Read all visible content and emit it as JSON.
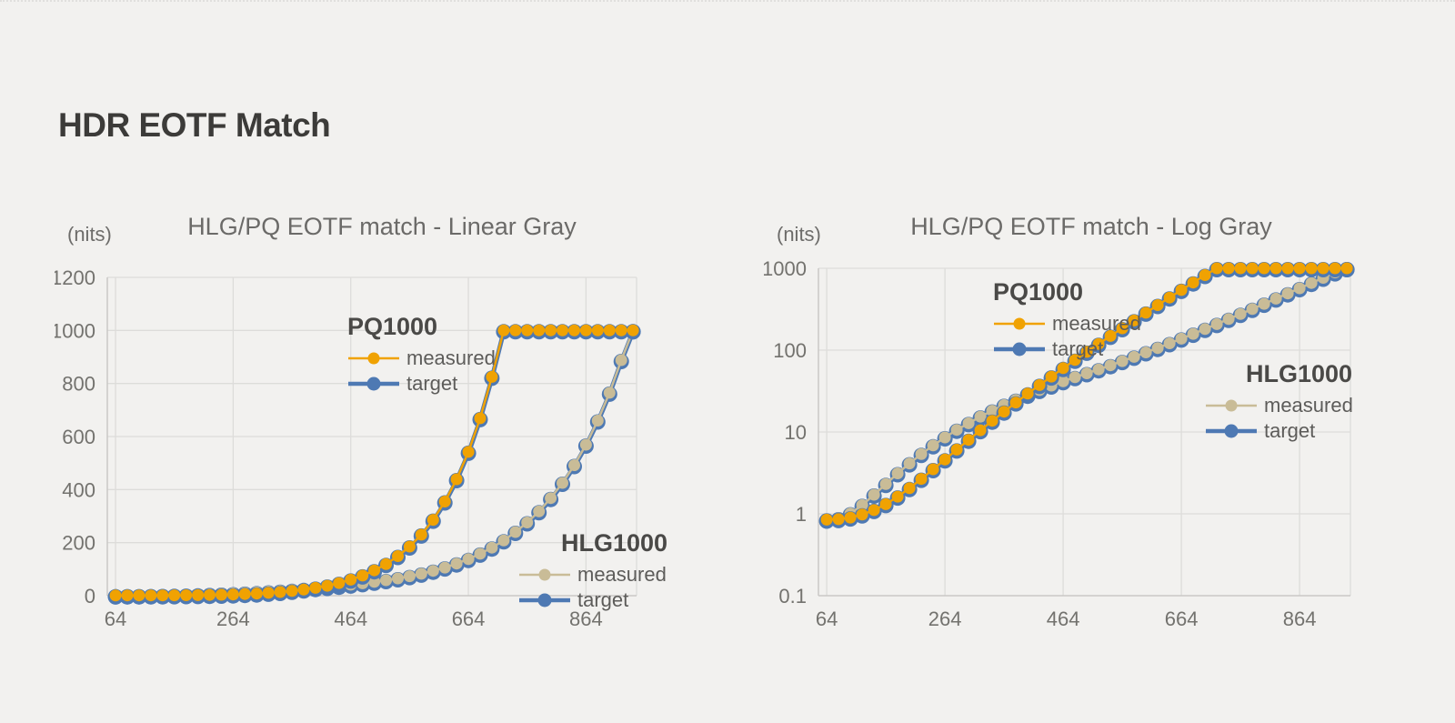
{
  "page": {
    "title": "HDR EOTF Match"
  },
  "colors": {
    "background": "#f2f1ef",
    "heading_text": "#3c3b39",
    "chart_text": "#6b6a68",
    "tick_text": "#73726e",
    "gridline": "#dddcda",
    "axis_line": "#c9c8c6",
    "pq_measured_orange": "#F0A202",
    "target_blue": "#4E79B3",
    "hlg_measured_tan": "#C9BC97"
  },
  "chart_data": [
    {
      "type": "line",
      "title": "HLG/PQ EOTF match - Linear Gray",
      "ylabel": "(nits)",
      "xlabel": "",
      "yscale": "linear",
      "ylim": [
        0,
        1200
      ],
      "yticks": [
        0,
        200,
        400,
        600,
        800,
        1000,
        1200
      ],
      "xlim": [
        50,
        950
      ],
      "xticks": [
        64,
        264,
        464,
        664,
        864
      ],
      "grid": true,
      "x": [
        64,
        84,
        104,
        124,
        144,
        164,
        184,
        204,
        224,
        244,
        264,
        284,
        304,
        324,
        344,
        364,
        384,
        404,
        424,
        444,
        464,
        484,
        504,
        524,
        544,
        564,
        584,
        604,
        624,
        644,
        664,
        684,
        704,
        724,
        744,
        764,
        784,
        804,
        824,
        844,
        864,
        884,
        904,
        924,
        944
      ],
      "series": [
        {
          "name": "HLG1000 target",
          "group": "HLG1000",
          "role": "target",
          "color": "#4E79B3",
          "values": [
            0.85,
            0.88,
            1.01,
            1.28,
            1.71,
            2.31,
            3.12,
            4.13,
            5.37,
            6.85,
            8.57,
            10.6,
            12.8,
            15.4,
            18.2,
            21.3,
            24.7,
            28.4,
            32.5,
            36.9,
            41.6,
            46.7,
            52.1,
            58.2,
            65.2,
            73.3,
            82.8,
            93.7,
            106,
            121,
            138,
            158,
            181,
            208,
            240,
            276,
            318,
            368,
            425,
            492,
            569,
            660,
            765,
            888,
            1000
          ]
        },
        {
          "name": "HLG1000 measured",
          "group": "HLG1000",
          "role": "measured",
          "color": "#C9BC97",
          "values": [
            0.85,
            0.88,
            1.01,
            1.28,
            1.71,
            2.31,
            3.12,
            4.13,
            5.37,
            6.85,
            8.57,
            10.6,
            12.8,
            15.4,
            18.2,
            21.3,
            24.7,
            28.4,
            32.5,
            36.9,
            41.6,
            46.7,
            52.1,
            58.2,
            65.2,
            73.3,
            82.8,
            93.7,
            106,
            121,
            138,
            158,
            181,
            208,
            240,
            276,
            318,
            368,
            425,
            492,
            569,
            660,
            765,
            888,
            1000
          ]
        },
        {
          "name": "PQ1000 target",
          "group": "PQ1000",
          "role": "target",
          "color": "#4E79B3",
          "values": [
            0.85,
            0.86,
            0.9,
            0.98,
            1.11,
            1.31,
            1.62,
            2.06,
            2.67,
            3.5,
            4.61,
            6.08,
            8.0,
            10.5,
            13.7,
            17.7,
            22.9,
            29.4,
            37.4,
            47.5,
            60.2,
            75.8,
            95.2,
            119,
            149,
            185,
            230,
            286,
            355,
            439,
            542,
            669,
            825,
            1000,
            1000,
            1000,
            1000,
            1000,
            1000,
            1000,
            1000,
            1000,
            1000,
            1000,
            1000
          ]
        },
        {
          "name": "PQ1000 measured",
          "group": "PQ1000",
          "role": "measured",
          "color": "#F0A202",
          "values": [
            0.85,
            0.86,
            0.9,
            0.98,
            1.11,
            1.31,
            1.62,
            2.06,
            2.67,
            3.5,
            4.61,
            6.08,
            8.0,
            10.5,
            13.7,
            17.7,
            22.9,
            29.4,
            37.4,
            47.5,
            60.2,
            75.8,
            95.2,
            119,
            149,
            185,
            230,
            286,
            355,
            439,
            542,
            669,
            825,
            1000,
            1000,
            1000,
            1000,
            1000,
            1000,
            1000,
            1000,
            1000,
            1000,
            1000,
            1000
          ]
        }
      ],
      "legends": [
        {
          "group": "PQ1000",
          "items": [
            {
              "label": "measured",
              "color": "#F0A202",
              "role": "measured"
            },
            {
              "label": "target",
              "color": "#4E79B3",
              "role": "target"
            }
          ]
        },
        {
          "group": "HLG1000",
          "items": [
            {
              "label": "measured",
              "color": "#C9BC97",
              "role": "measured"
            },
            {
              "label": "target",
              "color": "#4E79B3",
              "role": "target"
            }
          ]
        }
      ]
    },
    {
      "type": "line",
      "title": "HLG/PQ EOTF match - Log Gray",
      "ylabel": "(nits)",
      "xlabel": "",
      "yscale": "log",
      "ylim": [
        0.1,
        1000
      ],
      "yticks": [
        0.1,
        1,
        10,
        100,
        1000
      ],
      "xlim": [
        50,
        950
      ],
      "xticks": [
        64,
        264,
        464,
        664,
        864
      ],
      "grid": true,
      "x": [
        64,
        84,
        104,
        124,
        144,
        164,
        184,
        204,
        224,
        244,
        264,
        284,
        304,
        324,
        344,
        364,
        384,
        404,
        424,
        444,
        464,
        484,
        504,
        524,
        544,
        564,
        584,
        604,
        624,
        644,
        664,
        684,
        704,
        724,
        744,
        764,
        784,
        804,
        824,
        844,
        864,
        884,
        904,
        924,
        944
      ],
      "series": [
        {
          "name": "HLG1000 target",
          "group": "HLG1000",
          "role": "target",
          "color": "#4E79B3",
          "values": [
            0.85,
            0.88,
            1.01,
            1.28,
            1.71,
            2.31,
            3.12,
            4.13,
            5.37,
            6.85,
            8.57,
            10.6,
            12.8,
            15.4,
            18.2,
            21.3,
            24.7,
            28.4,
            32.5,
            36.9,
            41.6,
            46.7,
            52.1,
            58.2,
            65.2,
            73.3,
            82.8,
            93.7,
            106,
            121,
            138,
            158,
            181,
            208,
            240,
            276,
            318,
            368,
            425,
            492,
            569,
            660,
            765,
            888,
            1000
          ]
        },
        {
          "name": "HLG1000 measured",
          "group": "HLG1000",
          "role": "measured",
          "color": "#C9BC97",
          "values": [
            0.85,
            0.88,
            1.01,
            1.28,
            1.71,
            2.31,
            3.12,
            4.13,
            5.37,
            6.85,
            8.57,
            10.6,
            12.8,
            15.4,
            18.2,
            21.3,
            24.7,
            28.4,
            32.5,
            36.9,
            41.6,
            46.7,
            52.1,
            58.2,
            65.2,
            73.3,
            82.8,
            93.7,
            106,
            121,
            138,
            158,
            181,
            208,
            240,
            276,
            318,
            368,
            425,
            492,
            569,
            660,
            765,
            888,
            1000
          ]
        },
        {
          "name": "PQ1000 target",
          "group": "PQ1000",
          "role": "target",
          "color": "#4E79B3",
          "values": [
            0.85,
            0.86,
            0.9,
            0.98,
            1.11,
            1.31,
            1.62,
            2.06,
            2.67,
            3.5,
            4.61,
            6.08,
            8.0,
            10.5,
            13.7,
            17.7,
            22.9,
            29.4,
            37.4,
            47.5,
            60.2,
            75.8,
            95.2,
            119,
            149,
            185,
            230,
            286,
            355,
            439,
            542,
            669,
            825,
            1000,
            1000,
            1000,
            1000,
            1000,
            1000,
            1000,
            1000,
            1000,
            1000,
            1000,
            1000
          ]
        },
        {
          "name": "PQ1000 measured",
          "group": "PQ1000",
          "role": "measured",
          "color": "#F0A202",
          "values": [
            0.85,
            0.86,
            0.9,
            0.98,
            1.11,
            1.31,
            1.62,
            2.06,
            2.67,
            3.5,
            4.61,
            6.08,
            8.0,
            10.5,
            13.7,
            17.7,
            22.9,
            29.4,
            37.4,
            47.5,
            60.2,
            75.8,
            95.2,
            119,
            149,
            185,
            230,
            286,
            355,
            439,
            542,
            669,
            825,
            1000,
            1000,
            1000,
            1000,
            1000,
            1000,
            1000,
            1000,
            1000,
            1000,
            1000,
            1000
          ]
        }
      ],
      "legends": [
        {
          "group": "PQ1000",
          "items": [
            {
              "label": "measured",
              "color": "#F0A202",
              "role": "measured"
            },
            {
              "label": "target",
              "color": "#4E79B3",
              "role": "target"
            }
          ]
        },
        {
          "group": "HLG1000",
          "items": [
            {
              "label": "measured",
              "color": "#C9BC97",
              "role": "measured"
            },
            {
              "label": "target",
              "color": "#4E79B3",
              "role": "target"
            }
          ]
        }
      ]
    }
  ]
}
